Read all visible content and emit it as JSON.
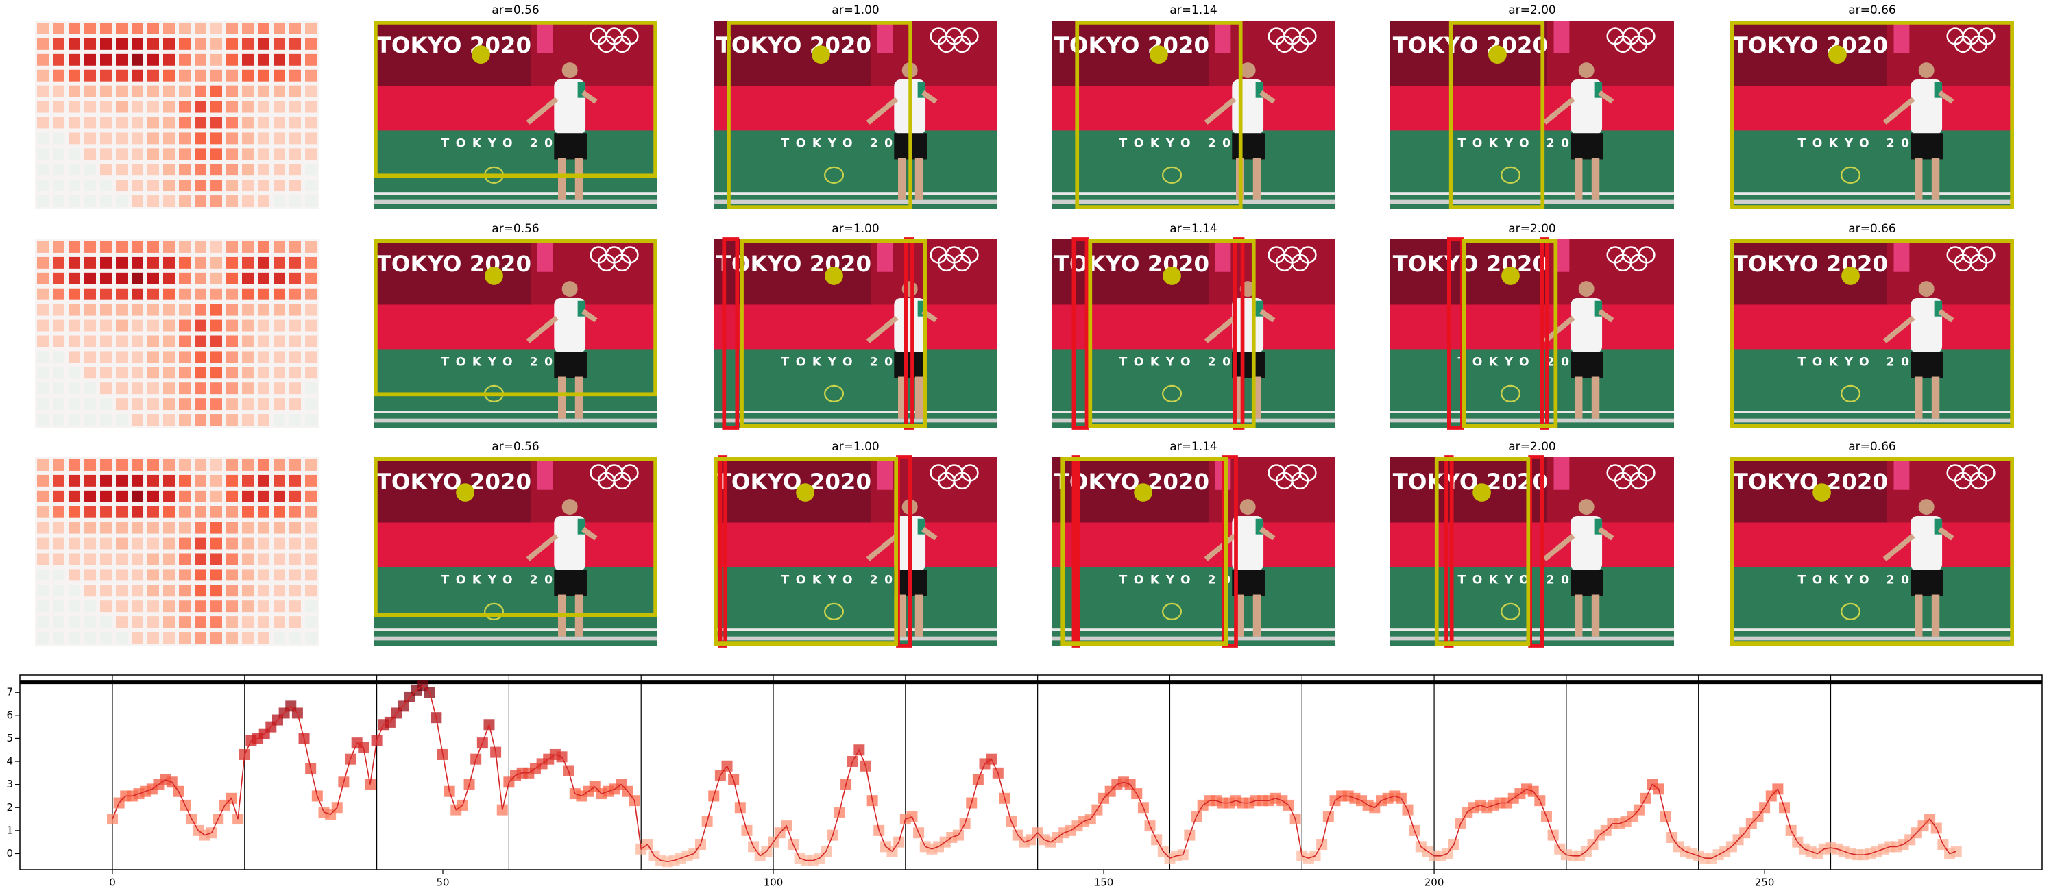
{
  "panels": {
    "titles": [
      "ar=0.56",
      "ar=1.00",
      "ar=1.14",
      "ar=2.00",
      "ar=0.66"
    ]
  },
  "photo_text": {
    "banner": "TOKYO 2020",
    "court": "TOKYO 2020"
  },
  "heatmap": {
    "cmap": "Reds",
    "values": [
      [
        2,
        3,
        4,
        4,
        4,
        4,
        4,
        4,
        3,
        2,
        2,
        1,
        3,
        3,
        4,
        3,
        3,
        2
      ],
      [
        3,
        6,
        7,
        7,
        8,
        8,
        8,
        7,
        7,
        5,
        3,
        2,
        5,
        6,
        7,
        6,
        6,
        4
      ],
      [
        3,
        6,
        7,
        8,
        8,
        8,
        9,
        8,
        7,
        4,
        3,
        2,
        5,
        7,
        7,
        7,
        6,
        4
      ],
      [
        2,
        4,
        5,
        6,
        6,
        6,
        7,
        6,
        5,
        3,
        3,
        3,
        3,
        5,
        5,
        5,
        4,
        3
      ],
      [
        1,
        1,
        2,
        2,
        2,
        2,
        2,
        2,
        2,
        2,
        4,
        5,
        3,
        2,
        2,
        2,
        2,
        1
      ],
      [
        1,
        1,
        1,
        1,
        1,
        2,
        1,
        1,
        2,
        4,
        6,
        5,
        3,
        2,
        1,
        1,
        1,
        1
      ],
      [
        1,
        1,
        1,
        1,
        1,
        1,
        1,
        2,
        2,
        4,
        6,
        6,
        4,
        2,
        1,
        1,
        1,
        1
      ],
      [
        0,
        0,
        1,
        1,
        1,
        1,
        1,
        2,
        2,
        3,
        5,
        5,
        3,
        2,
        1,
        1,
        1,
        1
      ],
      [
        0,
        0,
        0,
        1,
        1,
        1,
        1,
        2,
        2,
        3,
        5,
        5,
        3,
        2,
        1,
        1,
        1,
        1
      ],
      [
        0,
        0,
        0,
        0,
        1,
        1,
        1,
        1,
        2,
        3,
        4,
        4,
        3,
        2,
        1,
        1,
        1,
        0
      ],
      [
        0,
        0,
        0,
        0,
        0,
        1,
        1,
        1,
        2,
        3,
        4,
        4,
        2,
        1,
        1,
        1,
        1,
        0
      ],
      [
        0,
        0,
        0,
        0,
        0,
        0,
        1,
        1,
        1,
        2,
        3,
        3,
        2,
        1,
        1,
        0,
        0,
        0
      ]
    ]
  },
  "chart_data": {
    "type": "line",
    "color": "#d62728",
    "marker_cmap": "Reds",
    "xlim": [
      -14,
      292
    ],
    "ylim": [
      -0.7,
      7.75
    ],
    "xticks": [
      0,
      50,
      100,
      150,
      200,
      250
    ],
    "yticks": [
      0,
      1,
      2,
      3,
      4,
      5,
      6,
      7
    ],
    "vlines": [
      0,
      20,
      40,
      60,
      80,
      100,
      120,
      140,
      160,
      180,
      200,
      220,
      240,
      260
    ],
    "hline": 7.45,
    "x": [
      0,
      1,
      2,
      3,
      4,
      5,
      6,
      7,
      8,
      9,
      10,
      11,
      12,
      13,
      14,
      15,
      16,
      17,
      18,
      19,
      20,
      21,
      22,
      23,
      24,
      25,
      26,
      27,
      28,
      29,
      30,
      31,
      32,
      33,
      34,
      35,
      36,
      37,
      38,
      39,
      40,
      41,
      42,
      43,
      44,
      45,
      46,
      47,
      48,
      49,
      50,
      51,
      52,
      53,
      54,
      55,
      56,
      57,
      58,
      59,
      60,
      61,
      62,
      63,
      64,
      65,
      66,
      67,
      68,
      69,
      70,
      71,
      72,
      73,
      74,
      75,
      76,
      77,
      78,
      79,
      80,
      81,
      82,
      83,
      84,
      85,
      86,
      87,
      88,
      89,
      90,
      91,
      92,
      93,
      94,
      95,
      96,
      97,
      98,
      99,
      100,
      101,
      102,
      103,
      104,
      105,
      106,
      107,
      108,
      109,
      110,
      111,
      112,
      113,
      114,
      115,
      116,
      117,
      118,
      119,
      120,
      121,
      122,
      123,
      124,
      125,
      126,
      127,
      128,
      129,
      130,
      131,
      132,
      133,
      134,
      135,
      136,
      137,
      138,
      139,
      140,
      141,
      142,
      143,
      144,
      145,
      146,
      147,
      148,
      149,
      150,
      151,
      152,
      153,
      154,
      155,
      156,
      157,
      158,
      159,
      160,
      161,
      162,
      163,
      164,
      165,
      166,
      167,
      168,
      169,
      170,
      171,
      172,
      173,
      174,
      175,
      176,
      177,
      178,
      179,
      180,
      181,
      182,
      183,
      184,
      185,
      186,
      187,
      188,
      189,
      190,
      191,
      192,
      193,
      194,
      195,
      196,
      197,
      198,
      199,
      200,
      201,
      202,
      203,
      204,
      205,
      206,
      207,
      208,
      209,
      210,
      211,
      212,
      213,
      214,
      215,
      216,
      217,
      218,
      219,
      220,
      221,
      222,
      223,
      224,
      225,
      226,
      227,
      228,
      229,
      230,
      231,
      232,
      233,
      234,
      235,
      236,
      237,
      238,
      239,
      240,
      241,
      242,
      243,
      244,
      245,
      246,
      247,
      248,
      249,
      250,
      251,
      252,
      253,
      254,
      255,
      256,
      257,
      258,
      259,
      260,
      261,
      262,
      263,
      264,
      265,
      266,
      267,
      268,
      269,
      270,
      271,
      272,
      273,
      274,
      275,
      276,
      277,
      278,
      279
    ],
    "values": [
      1.5,
      2.2,
      2.5,
      2.5,
      2.6,
      2.7,
      2.8,
      3.0,
      3.2,
      3.1,
      2.7,
      2.1,
      1.5,
      1.0,
      0.8,
      0.9,
      1.5,
      2.1,
      2.4,
      1.5,
      4.3,
      4.9,
      5.0,
      5.2,
      5.5,
      5.8,
      6.1,
      6.4,
      6.1,
      5.0,
      3.7,
      2.5,
      1.8,
      1.7,
      2.0,
      3.1,
      4.1,
      4.8,
      4.6,
      3.0,
      4.9,
      5.6,
      5.7,
      6.1,
      6.4,
      6.8,
      7.1,
      7.3,
      7.0,
      5.9,
      4.3,
      2.7,
      1.9,
      2.1,
      3.0,
      4.1,
      4.8,
      5.6,
      4.4,
      1.9,
      3.1,
      3.4,
      3.5,
      3.5,
      3.7,
      3.9,
      4.1,
      4.3,
      4.2,
      3.6,
      2.6,
      2.5,
      2.7,
      2.9,
      2.6,
      2.7,
      2.8,
      3.0,
      2.7,
      2.3,
      0.2,
      0.4,
      -0.1,
      -0.3,
      -0.35,
      -0.3,
      -0.2,
      -0.1,
      0.0,
      0.4,
      1.4,
      2.5,
      3.4,
      3.8,
      3.2,
      2.0,
      1.0,
      0.3,
      -0.1,
      0.1,
      0.5,
      0.9,
      1.2,
      0.4,
      -0.2,
      -0.3,
      -0.3,
      -0.2,
      0.1,
      0.8,
      1.8,
      3.0,
      4.0,
      4.5,
      3.8,
      2.3,
      1.0,
      0.3,
      0.1,
      0.5,
      1.5,
      1.6,
      0.9,
      0.3,
      0.2,
      0.3,
      0.5,
      0.7,
      0.8,
      1.3,
      2.2,
      3.2,
      3.9,
      4.1,
      3.5,
      2.4,
      1.4,
      0.8,
      0.5,
      0.6,
      0.9,
      0.6,
      0.5,
      0.7,
      0.9,
      1.0,
      1.2,
      1.4,
      1.5,
      1.9,
      2.4,
      2.7,
      3.0,
      3.1,
      3.0,
      2.6,
      2.0,
      1.2,
      0.6,
      0.1,
      -0.2,
      -0.1,
      -0.05,
      0.8,
      1.6,
      2.1,
      2.3,
      2.3,
      2.2,
      2.2,
      2.3,
      2.2,
      2.2,
      2.3,
      2.3,
      2.3,
      2.4,
      2.3,
      2.1,
      1.5,
      -0.1,
      -0.2,
      -0.1,
      0.4,
      1.6,
      2.3,
      2.5,
      2.5,
      2.4,
      2.3,
      2.1,
      2.0,
      2.3,
      2.4,
      2.5,
      2.4,
      1.9,
      1.0,
      0.3,
      0.1,
      -0.1,
      -0.1,
      0.0,
      0.4,
      1.3,
      1.8,
      2.0,
      2.1,
      2.0,
      2.1,
      2.2,
      2.2,
      2.4,
      2.6,
      2.8,
      2.7,
      2.3,
      1.6,
      0.8,
      0.2,
      -0.05,
      -0.1,
      -0.1,
      0.1,
      0.4,
      0.8,
      1.0,
      1.3,
      1.3,
      1.4,
      1.6,
      1.9,
      2.4,
      3.0,
      2.8,
      1.6,
      0.7,
      0.3,
      0.1,
      0.0,
      -0.1,
      -0.2,
      -0.2,
      -0.05,
      0.1,
      0.3,
      0.6,
      0.9,
      1.3,
      1.6,
      2.0,
      2.5,
      2.8,
      2.0,
      1.0,
      0.5,
      0.2,
      0.1,
      0.0,
      0.2,
      0.25,
      0.2,
      0.1,
      0.0,
      -0.05,
      -0.05,
      0.0,
      0.1,
      0.2,
      0.3,
      0.3,
      0.4,
      0.6,
      0.9,
      1.2,
      1.5,
      1.1,
      0.4,
      0.0,
      0.1
    ]
  }
}
